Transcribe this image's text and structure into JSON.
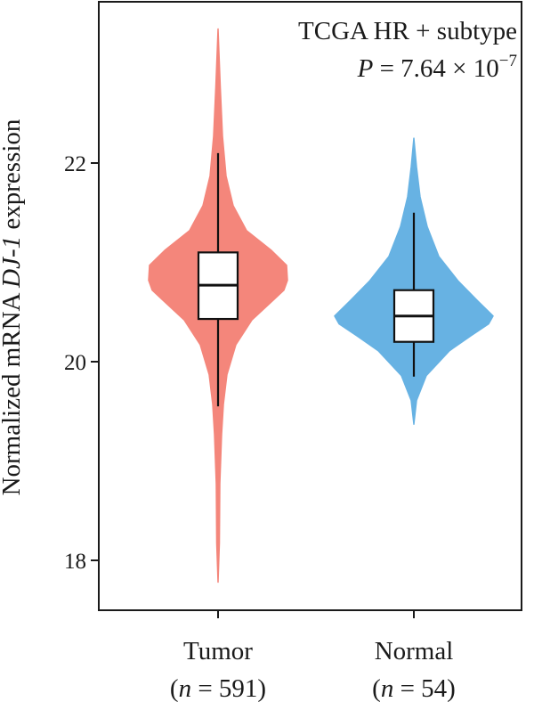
{
  "chart_data": {
    "type": "violin",
    "annotation": {
      "line1": "TCGA HR + subtype",
      "pvalue_symbol": "P",
      "pvalue_text": " = 7.64 × 10",
      "pvalue_exponent": "−7"
    },
    "ylabel": {
      "prefix": "Normalized mRNA ",
      "gene": "DJ-1",
      "suffix": " expression"
    },
    "ylim": [
      17.5,
      23.6
    ],
    "yticks": [
      18,
      20,
      22
    ],
    "ytick_labels": [
      "18",
      "20",
      "22"
    ],
    "grid": false,
    "groups": [
      {
        "name": "Tumor",
        "n_label_prefix": "(",
        "n_symbol": "n",
        "n_label_suffix": " = 591)",
        "color": "#f4867b",
        "whisker_low": 19.55,
        "q1": 20.43,
        "median": 20.77,
        "q3": 21.1,
        "whisker_high": 22.1,
        "violin_min": 17.78,
        "violin_max": 23.35
      },
      {
        "name": "Normal",
        "n_label_prefix": "(",
        "n_symbol": "n",
        "n_label_suffix": " = 54)",
        "color": "#67b2e3",
        "whisker_low": 19.85,
        "q1": 20.2,
        "median": 20.46,
        "q3": 20.72,
        "whisker_high": 21.5,
        "violin_min": 19.37,
        "violin_max": 22.25
      }
    ]
  }
}
